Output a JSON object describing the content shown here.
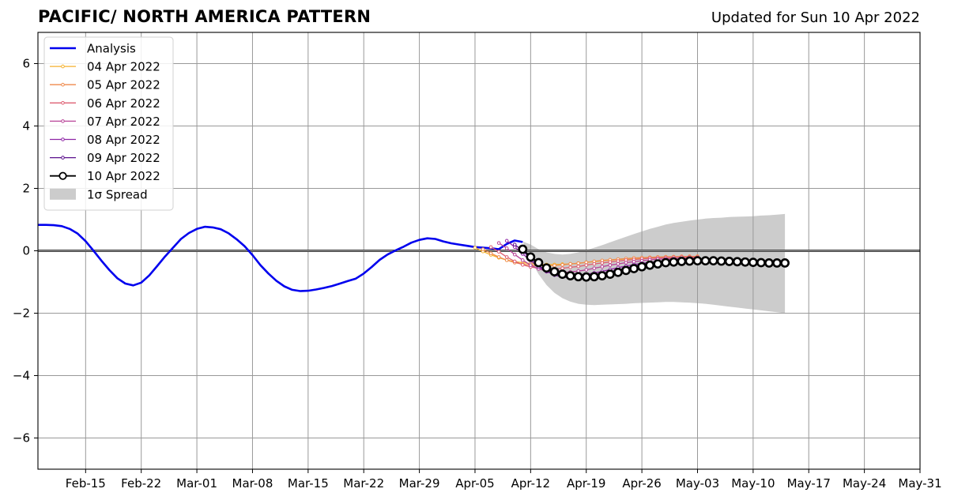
{
  "title": "PACIFIC/ NORTH AMERICA PATTERN",
  "updated": "Updated for Sun 10 Apr 2022",
  "colors": {
    "analysis": "#0000ee",
    "spread": "#cccccc",
    "grid": "#999999",
    "zero_line": "#444444"
  },
  "chart_data": {
    "type": "line",
    "title": "PACIFIC/ NORTH AMERICA PATTERN",
    "xlabel": "",
    "ylabel": "",
    "x_unit": "days since 2022-02-09",
    "xlim": [
      0,
      111
    ],
    "ylim": [
      -7,
      7
    ],
    "yticks": [
      -6,
      -4,
      -2,
      0,
      2,
      4,
      6
    ],
    "ytick_labels": [
      "−6",
      "−4",
      "−2",
      "0",
      "2",
      "4",
      "6"
    ],
    "xticks": [
      6,
      13,
      20,
      27,
      34,
      41,
      48,
      55,
      62,
      69,
      76,
      83,
      90,
      97,
      104,
      111
    ],
    "xtick_labels": [
      "Feb-15",
      "Feb-22",
      "Mar-01",
      "Mar-08",
      "Mar-15",
      "Mar-22",
      "Mar-29",
      "Apr-05",
      "Apr-12",
      "Apr-19",
      "Apr-26",
      "May-03",
      "May-10",
      "May-17",
      "May-24",
      "May-31"
    ],
    "grid": true,
    "legend": {
      "placement": "top-left",
      "entries": [
        "Analysis",
        "04 Apr 2022",
        "05 Apr 2022",
        "06 Apr 2022",
        "07 Apr 2022",
        "08 Apr 2022",
        "09 Apr 2022",
        "10 Apr 2022",
        "1σ Spread"
      ]
    },
    "analysis": {
      "name": "Analysis",
      "color": "#0000ee",
      "x": [
        0,
        1,
        2,
        3,
        4,
        5,
        6,
        7,
        8,
        9,
        10,
        11,
        12,
        13,
        14,
        15,
        16,
        17,
        18,
        19,
        20,
        21,
        22,
        23,
        24,
        25,
        26,
        27,
        28,
        29,
        30,
        31,
        32,
        33,
        34,
        35,
        36,
        37,
        38,
        39,
        40,
        41,
        42,
        43,
        44,
        45,
        46,
        47,
        48,
        49,
        50,
        51,
        52,
        53,
        54,
        55,
        56,
        57,
        58,
        59,
        60,
        61
      ],
      "y": [
        0.83,
        0.83,
        0.82,
        0.79,
        0.7,
        0.55,
        0.31,
        0.0,
        -0.32,
        -0.62,
        -0.88,
        -1.05,
        -1.11,
        -1.02,
        -0.79,
        -0.49,
        -0.18,
        0.1,
        0.38,
        0.57,
        0.7,
        0.77,
        0.75,
        0.69,
        0.56,
        0.37,
        0.15,
        -0.14,
        -0.46,
        -0.73,
        -0.96,
        -1.14,
        -1.25,
        -1.29,
        -1.28,
        -1.24,
        -1.19,
        -1.13,
        -1.05,
        -0.97,
        -0.89,
        -0.73,
        -0.52,
        -0.29,
        -0.12,
        0.01,
        0.13,
        0.26,
        0.35,
        0.4,
        0.38,
        0.3,
        0.24,
        0.2,
        0.16,
        0.12,
        0.1,
        0.08,
        0.05,
        0.22,
        0.33,
        0.28
      ]
    },
    "forecasts": [
      {
        "name": "04 Apr 2022",
        "color": "#f5b12e",
        "x0": 55,
        "y": [
          0.1,
          -0.02,
          -0.13,
          -0.22,
          -0.3,
          -0.35,
          -0.38,
          -0.41,
          -0.43,
          -0.44,
          -0.44,
          -0.43,
          -0.42,
          -0.4,
          -0.37,
          -0.35,
          -0.32,
          -0.3,
          -0.28,
          -0.26,
          -0.25,
          -0.23,
          -0.22,
          -0.21,
          -0.2,
          -0.19,
          -0.19,
          -0.18,
          -0.18
        ]
      },
      {
        "name": "05 Apr 2022",
        "color": "#ef8a4b",
        "x0": 56,
        "y": [
          0.05,
          -0.08,
          -0.2,
          -0.3,
          -0.38,
          -0.43,
          -0.46,
          -0.48,
          -0.48,
          -0.47,
          -0.45,
          -0.42,
          -0.4,
          -0.37,
          -0.34,
          -0.31,
          -0.29,
          -0.27,
          -0.25,
          -0.23,
          -0.22,
          -0.21,
          -0.2,
          -0.19,
          -0.19,
          -0.18,
          -0.18,
          -0.18
        ]
      },
      {
        "name": "06 Apr 2022",
        "color": "#de5f72",
        "x0": 57,
        "y": [
          0.12,
          -0.03,
          -0.2,
          -0.34,
          -0.45,
          -0.52,
          -0.56,
          -0.58,
          -0.58,
          -0.56,
          -0.53,
          -0.5,
          -0.46,
          -0.42,
          -0.39,
          -0.36,
          -0.33,
          -0.3,
          -0.28,
          -0.26,
          -0.24,
          -0.23,
          -0.22,
          -0.21,
          -0.2,
          -0.2,
          -0.2
        ]
      },
      {
        "name": "07 Apr 2022",
        "color": "#b84398",
        "x0": 58,
        "y": [
          0.25,
          0.08,
          -0.12,
          -0.3,
          -0.46,
          -0.58,
          -0.65,
          -0.68,
          -0.69,
          -0.68,
          -0.65,
          -0.61,
          -0.56,
          -0.51,
          -0.46,
          -0.42,
          -0.38,
          -0.35,
          -0.32,
          -0.29,
          -0.27,
          -0.26,
          -0.25,
          -0.24,
          -0.23,
          -0.23
        ]
      },
      {
        "name": "08 Apr 2022",
        "color": "#8e26a6",
        "x0": 59,
        "y": [
          0.32,
          0.12,
          -0.1,
          -0.32,
          -0.52,
          -0.67,
          -0.75,
          -0.79,
          -0.8,
          -0.78,
          -0.75,
          -0.71,
          -0.66,
          -0.6,
          -0.54,
          -0.49,
          -0.44,
          -0.4,
          -0.37,
          -0.34,
          -0.32,
          -0.3,
          -0.29,
          -0.28,
          -0.28
        ]
      },
      {
        "name": "09 Apr 2022",
        "color": "#5a0f8c",
        "x0": 60,
        "y": [
          0.2,
          0.0,
          -0.25,
          -0.47,
          -0.65,
          -0.78,
          -0.84,
          -0.86,
          -0.85,
          -0.82,
          -0.78,
          -0.73,
          -0.67,
          -0.61,
          -0.55,
          -0.49,
          -0.44,
          -0.4,
          -0.37,
          -0.34,
          -0.32,
          -0.3,
          -0.29,
          -0.29
        ]
      },
      {
        "name": "10 Apr 2022",
        "color": "#000000",
        "x0": 61,
        "y": [
          0.05,
          -0.2,
          -0.38,
          -0.55,
          -0.67,
          -0.75,
          -0.8,
          -0.83,
          -0.84,
          -0.83,
          -0.8,
          -0.75,
          -0.69,
          -0.63,
          -0.57,
          -0.51,
          -0.46,
          -0.42,
          -0.38,
          -0.36,
          -0.34,
          -0.33,
          -0.32,
          -0.32,
          -0.32,
          -0.33,
          -0.34,
          -0.35,
          -0.36,
          -0.37,
          -0.38,
          -0.39,
          -0.39,
          -0.39
        ]
      }
    ],
    "spread": {
      "name": "1σ Spread",
      "color": "#cccccc",
      "x": [
        61,
        62,
        63,
        64,
        65,
        66,
        67,
        68,
        69,
        70,
        71,
        72,
        73,
        74,
        75,
        76,
        77,
        78,
        79,
        80,
        81,
        82,
        83,
        84,
        85,
        86,
        87,
        88,
        89,
        90,
        91,
        92,
        93,
        94
      ],
      "upper": [
        0.3,
        0.2,
        0.05,
        -0.05,
        -0.1,
        -0.12,
        -0.1,
        -0.05,
        0.02,
        0.1,
        0.18,
        0.27,
        0.36,
        0.45,
        0.54,
        0.62,
        0.7,
        0.77,
        0.84,
        0.89,
        0.93,
        0.97,
        1.0,
        1.03,
        1.05,
        1.06,
        1.08,
        1.09,
        1.1,
        1.11,
        1.13,
        1.14,
        1.16,
        1.18
      ],
      "lower": [
        0.3,
        -0.3,
        -0.75,
        -1.1,
        -1.35,
        -1.52,
        -1.63,
        -1.7,
        -1.73,
        -1.74,
        -1.73,
        -1.72,
        -1.71,
        -1.7,
        -1.68,
        -1.67,
        -1.66,
        -1.65,
        -1.64,
        -1.64,
        -1.65,
        -1.66,
        -1.68,
        -1.7,
        -1.73,
        -1.76,
        -1.79,
        -1.82,
        -1.85,
        -1.88,
        -1.91,
        -1.94,
        -1.97,
        -2.0
      ]
    }
  }
}
